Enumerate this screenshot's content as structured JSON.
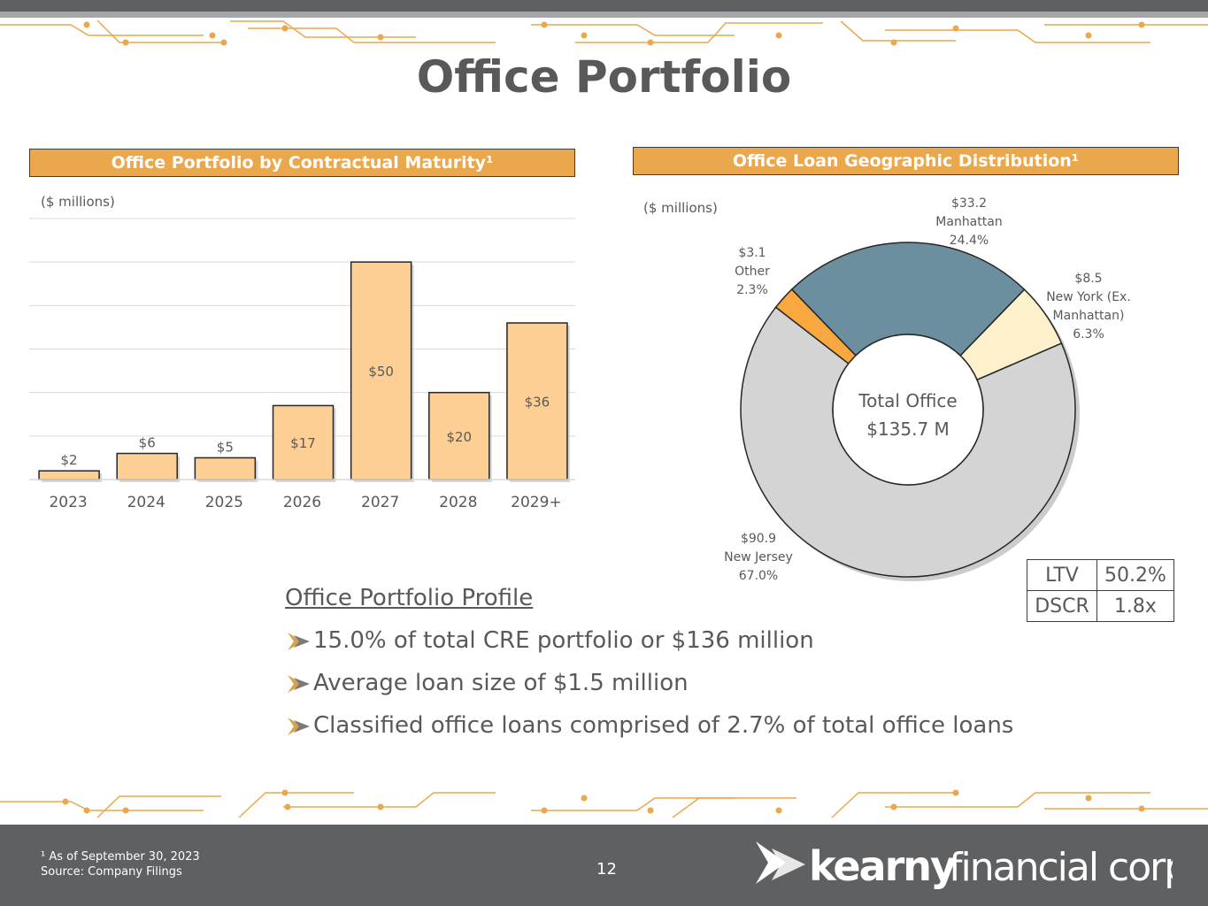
{
  "page": {
    "title": "Office Portfolio",
    "page_number": "12",
    "footnote_line1": "¹ As of September 30, 2023",
    "footnote_line2": "Source: Company Filings",
    "logo": {
      "brand_bold": "kearny",
      "brand_light": "financial corp."
    }
  },
  "colors": {
    "accent": "#eba74c",
    "bar_fill": "#fdcf95",
    "manhattan": "#6b8f9e",
    "new_york": "#fdf1cc",
    "new_jersey": "#d4d4d4",
    "other": "#f9a83f",
    "footer": "#5f6062"
  },
  "chart_data": [
    {
      "type": "bar",
      "title": "Office Portfolio by Contractual Maturity¹",
      "unit_label": "($ millions)",
      "categories": [
        "2023",
        "2024",
        "2025",
        "2026",
        "2027",
        "2028",
        "2029+"
      ],
      "values": [
        2,
        6,
        5,
        17,
        50,
        20,
        36
      ],
      "data_labels": [
        "$2",
        "$6",
        "$5",
        "$17",
        "$50",
        "$20",
        "$36"
      ],
      "ylim": [
        0,
        60
      ],
      "grid": true
    },
    {
      "type": "pie",
      "title": "Office Loan Geographic Distribution¹",
      "unit_label": "($ millions)",
      "center_label_line1": "Total Office",
      "center_label_line2": "$135.7 M",
      "slices": [
        {
          "name": "Manhattan",
          "value": 33.2,
          "percent": 24.4,
          "label_value": "$33.2",
          "label_percent": "24.4%",
          "color_key": "manhattan"
        },
        {
          "name": "New York (Ex. Manhattan)",
          "name_line1": "New York (Ex.",
          "name_line2": "Manhattan)",
          "value": 8.5,
          "percent": 6.3,
          "label_value": "$8.5",
          "label_percent": "6.3%",
          "color_key": "new_york"
        },
        {
          "name": "New Jersey",
          "value": 90.9,
          "percent": 67.0,
          "label_value": "$90.9",
          "label_percent": "67.0%",
          "color_key": "new_jersey"
        },
        {
          "name": "Other",
          "value": 3.1,
          "percent": 2.3,
          "label_value": "$3.1",
          "label_percent": "2.3%",
          "color_key": "other"
        }
      ]
    }
  ],
  "profile": {
    "title": "Office Portfolio Profile",
    "bullets": [
      "15.0% of total CRE portfolio or $136 million",
      "Average loan size of $1.5 million",
      "Classified office loans comprised of 2.7% of total office loans"
    ]
  },
  "metrics": [
    {
      "label": "LTV",
      "value": "50.2%"
    },
    {
      "label": "DSCR",
      "value": "1.8x"
    }
  ]
}
